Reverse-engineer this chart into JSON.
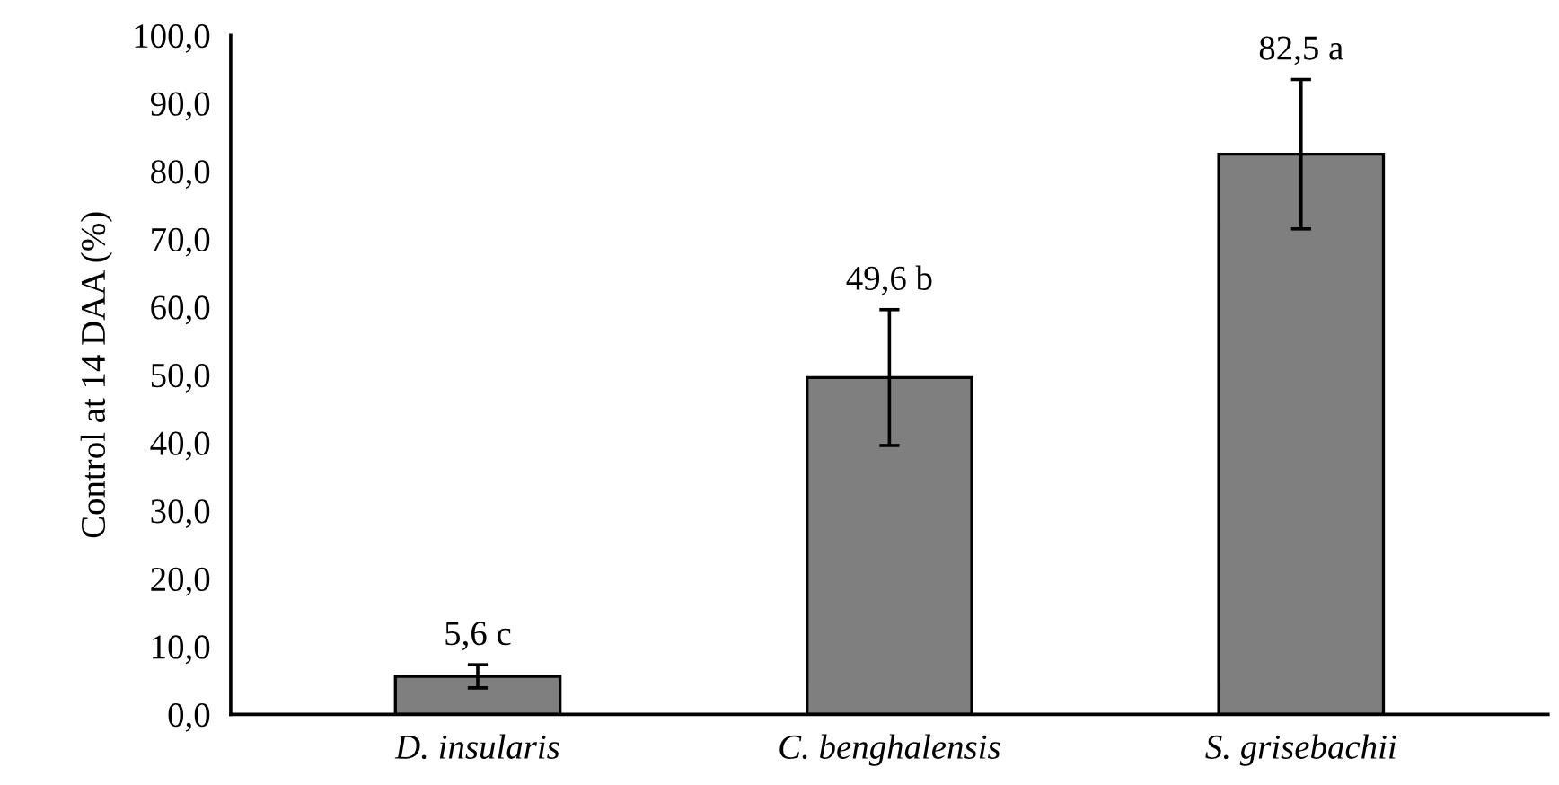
{
  "chart_data": {
    "type": "bar",
    "ylabel": "Control at 14 DAA (%)",
    "categories": [
      "D. insularis",
      "C. benghalensis",
      "S. grisebachii"
    ],
    "values": [
      5.6,
      49.6,
      82.5
    ],
    "errors": [
      1.7,
      10.0,
      11.0
    ],
    "value_labels": [
      "5,6 c",
      "49,6 b",
      "82,5 a"
    ],
    "color": "#7f7f7f",
    "ylim": [
      0,
      100
    ],
    "yticks": [
      {
        "value": 0,
        "label": "0,0"
      },
      {
        "value": 10,
        "label": "10,0"
      },
      {
        "value": 20,
        "label": "20,0"
      },
      {
        "value": 30,
        "label": "30,0"
      },
      {
        "value": 40,
        "label": "40,0"
      },
      {
        "value": 50,
        "label": "50,0"
      },
      {
        "value": 60,
        "label": "60,0"
      },
      {
        "value": 70,
        "label": "70,0"
      },
      {
        "value": 80,
        "label": "80,0"
      },
      {
        "value": 90,
        "label": "90,0"
      },
      {
        "value": 100,
        "label": "100,0"
      }
    ],
    "grid": false,
    "legend": false
  }
}
